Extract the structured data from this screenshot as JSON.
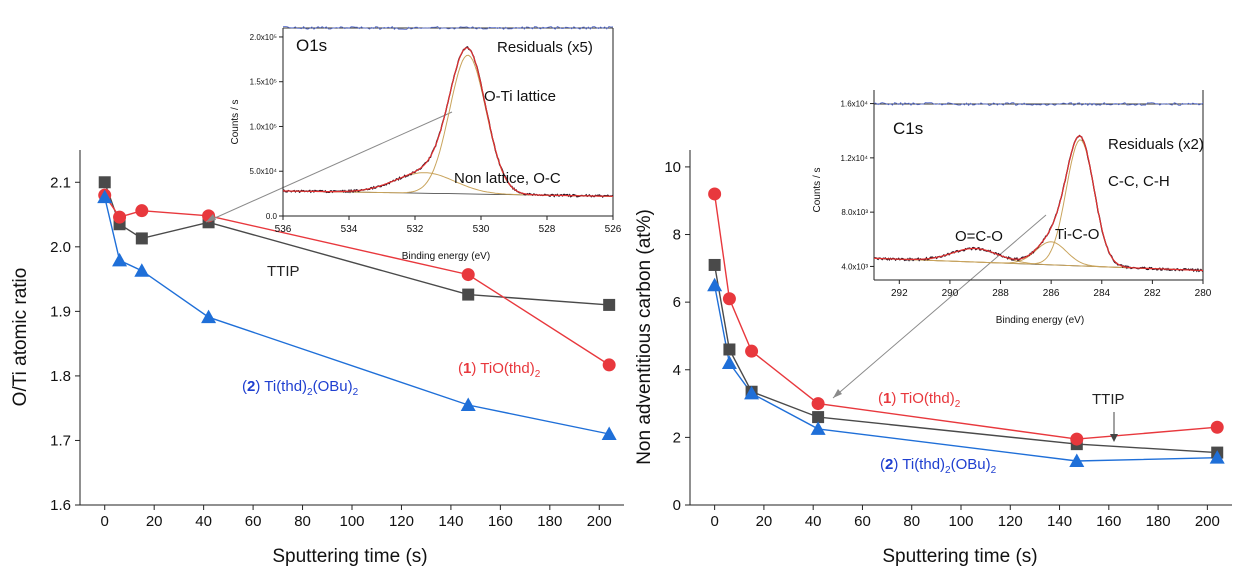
{
  "colors": {
    "ttip": "#4a4a4a",
    "thd1": "#e8383d",
    "thd2": "#1f6fd8",
    "fit": "#c9a45c",
    "envelope": "#e03030",
    "raw": "#2a1020",
    "residual": "#5a6fd0",
    "arrow": "#8a8a8a"
  },
  "chart_data": [
    {
      "type": "line",
      "xlabel": "Sputtering time (s)",
      "ylabel": "O/Ti atomic ratio",
      "xlim": [
        -10,
        210
      ],
      "ylim": [
        1.6,
        2.15
      ],
      "xticks": [
        "0",
        "20",
        "40",
        "60",
        "80",
        "100",
        "120",
        "140",
        "160",
        "180",
        "200"
      ],
      "yticks": [
        "1.6",
        "1.7",
        "1.8",
        "1.9",
        "2.0",
        "2.1"
      ],
      "series": [
        {
          "key": "ttip",
          "marker": "square",
          "x": [
            0,
            6,
            15,
            42,
            147,
            204
          ],
          "y": [
            2.1,
            2.035,
            2.013,
            2.038,
            1.926,
            1.91
          ]
        },
        {
          "key": "thd1",
          "marker": "circle",
          "x": [
            0,
            6,
            15,
            42,
            147,
            204
          ],
          "y": [
            2.08,
            2.046,
            2.056,
            2.048,
            1.957,
            1.817
          ]
        },
        {
          "key": "thd2",
          "marker": "triangle",
          "x": [
            0,
            6,
            15,
            42,
            147,
            204
          ],
          "y": [
            2.077,
            1.979,
            1.963,
            1.891,
            1.755,
            1.71
          ]
        }
      ],
      "annotations": {
        "ttip": "TTIP",
        "thd1": {
          "num": "1",
          "formula": "TiO(thd)",
          "sub": "2"
        },
        "thd2": {
          "num": "2",
          "formula": "Ti(thd)",
          "sub1": "2",
          "mid": "(OBu)",
          "sub2": "2"
        }
      },
      "inset": {
        "label": "O1s",
        "xlabel": "Binding energy (eV)",
        "ylabel": "Counts / s",
        "xlim": [
          536,
          526
        ],
        "ylim": [
          0,
          210000
        ],
        "xticks": [
          "536",
          "534",
          "532",
          "530",
          "528",
          "526"
        ],
        "yticks": [
          "0.0",
          "5.0x10⁴",
          "1.0x10⁵",
          "1.5x10⁵",
          "2.0x10⁵"
        ],
        "residuals_label": "Residuals (x5)",
        "peaks": [
          {
            "label": "O-Ti lattice",
            "center": 530.4,
            "height": 155000,
            "width": 0.55
          },
          {
            "label": "Non lattice, O-C",
            "center": 531.7,
            "height": 23000,
            "width": 0.9
          }
        ],
        "background": {
          "start": 28000,
          "end": 22000
        }
      }
    },
    {
      "type": "line",
      "xlabel": "Sputtering time (s)",
      "ylabel": "Non adventitious carbon (at%)",
      "xlim": [
        -10,
        210
      ],
      "ylim": [
        0,
        10.5
      ],
      "xticks": [
        "0",
        "20",
        "40",
        "60",
        "80",
        "100",
        "120",
        "140",
        "160",
        "180",
        "200"
      ],
      "yticks": [
        "0",
        "2",
        "4",
        "6",
        "8",
        "10"
      ],
      "series": [
        {
          "key": "ttip",
          "marker": "square",
          "x": [
            0,
            6,
            15,
            42,
            147,
            204
          ],
          "y": [
            7.1,
            4.6,
            3.35,
            2.6,
            1.8,
            1.55
          ]
        },
        {
          "key": "thd1",
          "marker": "circle",
          "x": [
            0,
            6,
            15,
            42,
            147,
            204
          ],
          "y": [
            9.2,
            6.1,
            4.55,
            3.0,
            1.95,
            2.3
          ]
        },
        {
          "key": "thd2",
          "marker": "triangle",
          "x": [
            0,
            6,
            15,
            42,
            147,
            204
          ],
          "y": [
            6.5,
            4.2,
            3.3,
            2.25,
            1.3,
            1.4
          ]
        }
      ],
      "annotations": {
        "ttip": "TTIP",
        "thd1": {
          "num": "1",
          "formula": "TiO(thd)",
          "sub": "2"
        },
        "thd2": {
          "num": "2",
          "formula": "Ti(thd)",
          "sub1": "2",
          "mid": "(OBu)",
          "sub2": "2"
        }
      },
      "inset": {
        "label": "C1s",
        "xlabel": "Binding energy (eV)",
        "ylabel": "Counts / s",
        "xlim": [
          293,
          280
        ],
        "ylim": [
          3000,
          17000
        ],
        "xticks": [
          "292",
          "290",
          "288",
          "286",
          "284",
          "282",
          "280"
        ],
        "yticks": [
          "4.0x10³",
          "8.0x10³",
          "1.2x10⁴",
          "1.6x10⁴"
        ],
        "residuals_label": "Residuals (x2)",
        "peaks": [
          {
            "label": "C-C, C-H",
            "center": 284.85,
            "height": 9300,
            "width": 0.55
          },
          {
            "label": "Ti-C-O",
            "center": 286.0,
            "height": 1700,
            "width": 0.6
          },
          {
            "label": "O=C-O",
            "center": 289.0,
            "height": 1000,
            "width": 0.9
          }
        ],
        "background": {
          "start": 4600,
          "end": 3700
        }
      }
    }
  ]
}
